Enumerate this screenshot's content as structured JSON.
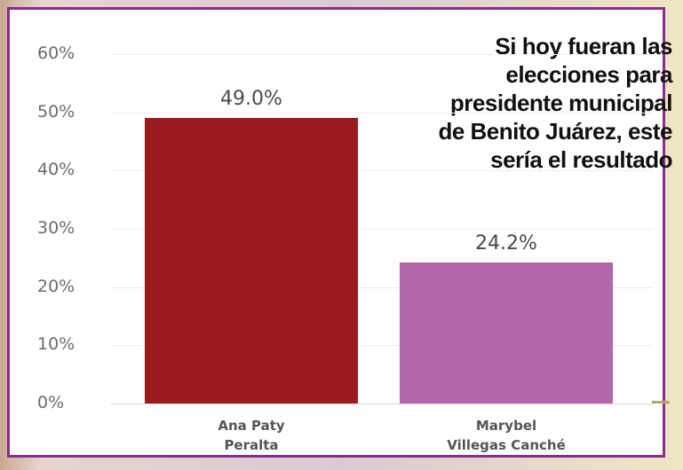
{
  "headline": "Si hoy fueran las\nelecciones para\npresidente municipal\nde Benito Juárez, este\nsería el resultado",
  "chart_data": {
    "type": "bar",
    "categories": [
      "Ana Paty\nPeralta",
      "Marybel\nVillegas Canché"
    ],
    "values": [
      49.0,
      24.2
    ],
    "value_labels": [
      "49.0%",
      "24.2%"
    ],
    "colors": [
      "#9b1c1f",
      "#b267aa"
    ],
    "y_ticks": [
      "0%",
      "10%",
      "20%",
      "30%",
      "40%",
      "50%",
      "60%"
    ],
    "ylim": [
      0,
      60
    ],
    "grid": true
  }
}
